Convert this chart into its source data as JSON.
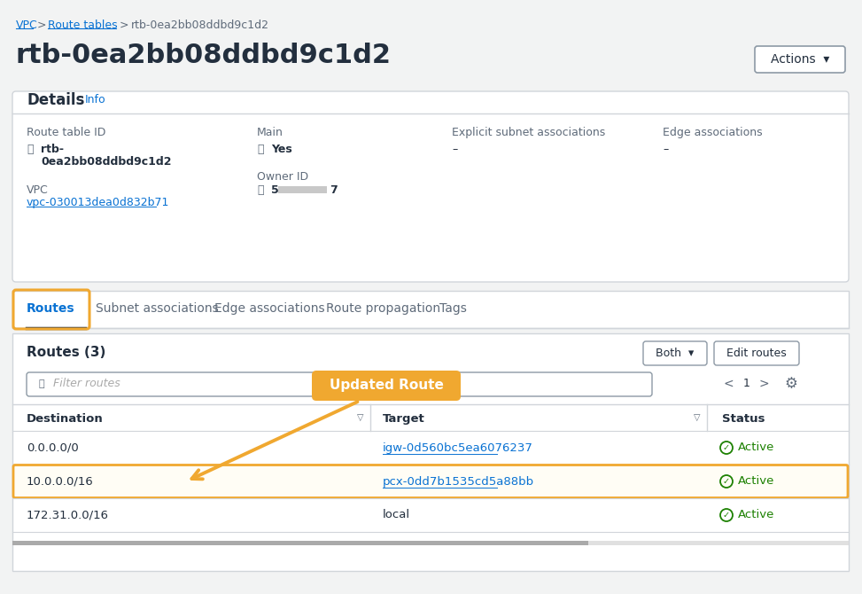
{
  "bg_color": "#f2f3f3",
  "white": "#ffffff",
  "breadcrumb_link_color": "#0972d3",
  "title": "rtb-0ea2bb08ddbd9c1d2",
  "actions_btn": "Actions  ▾",
  "explicit_subnet_value": "–",
  "edge_assoc_value": "–",
  "vpc_value": "vpc-030013dea0d832b71",
  "tab_routes": "Routes",
  "tab_subnet": "Subnet associations",
  "tab_edge": "Edge associations",
  "tab_propagation": "Route propagation",
  "tab_tags": "Tags",
  "routes_count": "Routes (3)",
  "both_btn": "Both  ▾",
  "edit_btn": "Edit routes",
  "filter_placeholder": "Filter routes",
  "col_destination": "Destination",
  "col_target": "Target",
  "col_status": "Status",
  "rows": [
    {
      "dest": "0.0.0.0/0",
      "target": "igw-0d560bc5ea6076237",
      "target_link": true,
      "status": "Active",
      "highlight": false
    },
    {
      "dest": "10.0.0.0/16",
      "target": "pcx-0dd7b1535cd5a88bb",
      "target_link": true,
      "status": "Active",
      "highlight": true
    },
    {
      "dest": "172.31.0.0/16",
      "target": "local",
      "target_link": false,
      "status": "Active",
      "highlight": false
    }
  ],
  "annotation_text": "Updated Route",
  "annotation_color": "#f0a830",
  "annotation_text_color": "#ffffff",
  "link_color": "#0972d3",
  "active_color": "#1d8102",
  "orange_border": "#f0a830",
  "dark_text": "#232f3e",
  "gray_text": "#5f6b7a",
  "border_color": "#d1d5da",
  "tab_active_color": "#0972d3"
}
